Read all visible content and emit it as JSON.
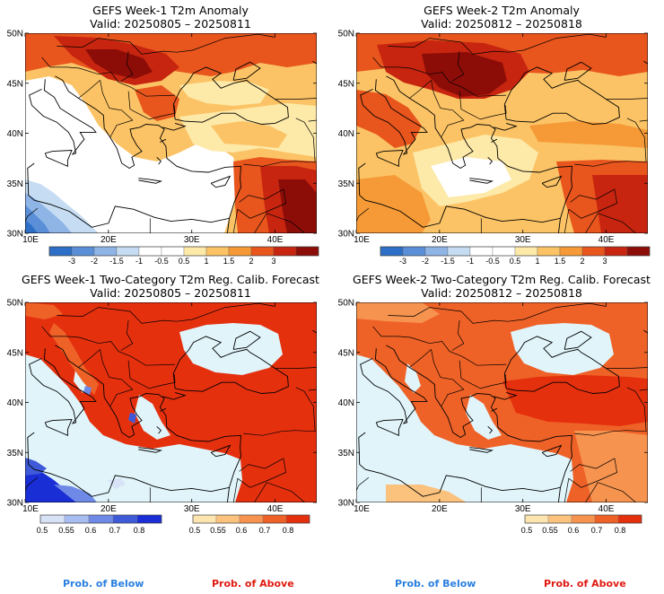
{
  "panels": [
    {
      "id": "p1",
      "title": "GEFS Week-1 T2m Anomaly",
      "valid": "Valid: 20250805 – 20250811",
      "type": "anomaly"
    },
    {
      "id": "p2",
      "title": "GEFS Week-2 T2m Anomaly",
      "valid": "Valid: 20250812 – 20250818",
      "type": "anomaly"
    },
    {
      "id": "p3",
      "title": "GEFS Week-1 Two-Category T2m Reg. Calib. Forecast",
      "valid": "Valid: 20250805 – 20250811",
      "type": "prob"
    },
    {
      "id": "p4",
      "title": "GEFS Week-2 Two-Category T2m Reg. Calib. Forecast",
      "valid": "Valid: 20250812 – 20250818",
      "type": "prob"
    }
  ],
  "axes": {
    "lat_labels": [
      "50N",
      "45N",
      "40N",
      "35N",
      "30N"
    ],
    "lon_labels": [
      "10E",
      "20E",
      "30E",
      "40E"
    ]
  },
  "anomaly_colorbar": {
    "ticks": [
      "-3",
      "-2",
      "-1.5",
      "-1",
      "-0.5",
      "0.5",
      "1",
      "1.5",
      "2",
      "3"
    ],
    "colors": [
      "#2d6fc6",
      "#5a8fd8",
      "#8fb4e6",
      "#c5dcf2",
      "#ffffff",
      "#ffffff",
      "#fde9a8",
      "#fbc365",
      "#f59a36",
      "#e8551d",
      "#c7250f",
      "#8c0d08"
    ]
  },
  "prob_colorbar": {
    "ticks": [
      "0.5",
      "0.55",
      "0.6",
      "0.7",
      "0.8"
    ],
    "below_colors": [
      "#d7e2f7",
      "#a8bdf0",
      "#6e8ae6",
      "#3e5ad9",
      "#1a2ed6"
    ],
    "above_colors": [
      "#fde5b0",
      "#fbc27e",
      "#f6934f",
      "#ef6227",
      "#e5300e"
    ],
    "below_label": "Prob. of Below",
    "above_label": "Prob. of Above",
    "below_color": "#2a7fe0",
    "above_color": "#e01a10"
  },
  "map_colors": {
    "sea": "#e0f4fa",
    "land_warm": "#e8451c"
  }
}
